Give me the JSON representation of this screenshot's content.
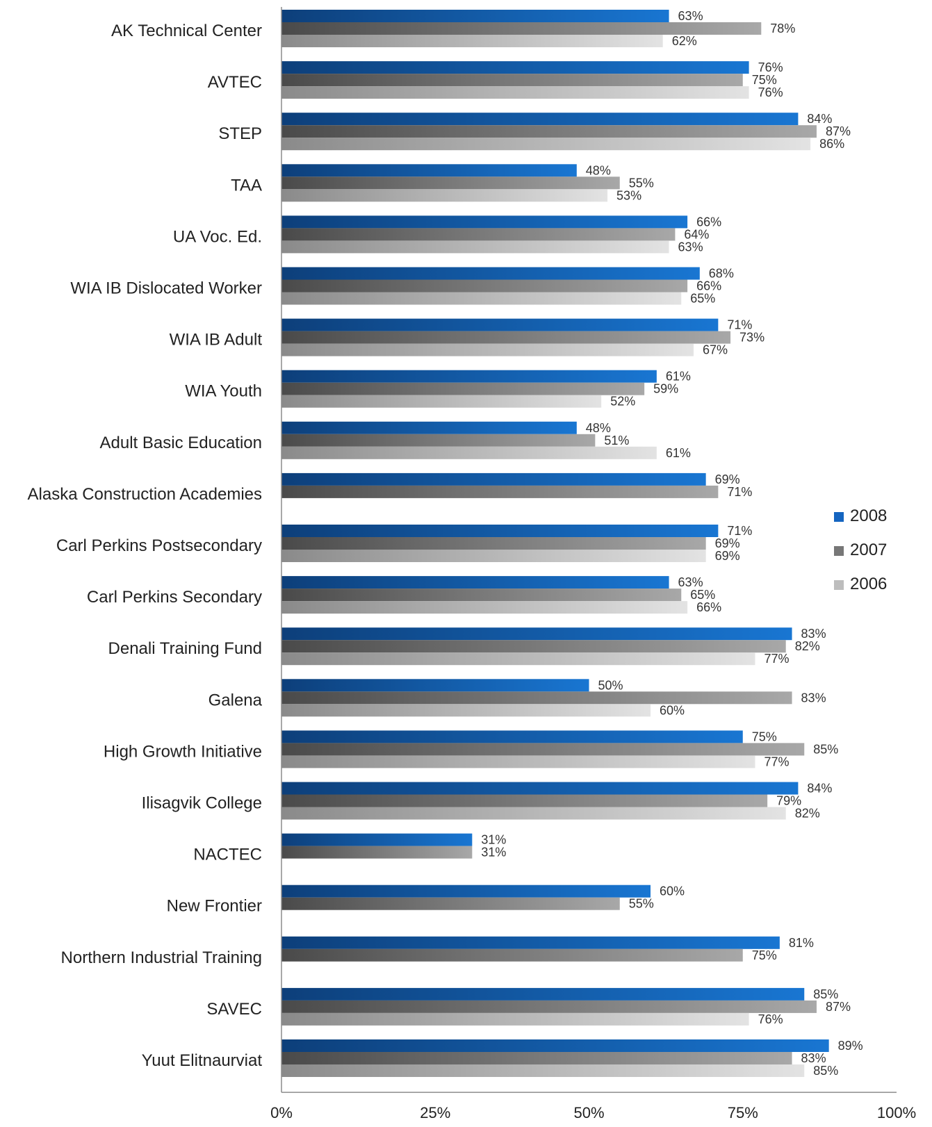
{
  "chart_data": {
    "type": "bar",
    "orientation": "horizontal",
    "title": "",
    "xlabel": "",
    "ylabel": "",
    "xlim": [
      0,
      100
    ],
    "x_ticks": [
      "0%",
      "25%",
      "50%",
      "75%",
      "100%"
    ],
    "grid": false,
    "legend_position": "right",
    "value_suffix": "%",
    "categories": [
      "AK Technical Center",
      "AVTEC",
      "STEP",
      "TAA",
      "UA Voc. Ed.",
      "WIA IB Dislocated Worker",
      "WIA IB Adult",
      "WIA Youth",
      "Adult Basic Education",
      "Alaska Construction Academies",
      "Carl Perkins Postsecondary",
      "Carl Perkins Secondary",
      "Denali Training Fund",
      "Galena",
      "High Growth Initiative",
      "Ilisagvik College",
      "NACTEC",
      "New Frontier",
      "Northern Industrial Training",
      "SAVEC",
      "Yuut Elitnaurviat"
    ],
    "series": [
      {
        "name": "2008",
        "color": "#1565C0",
        "values": [
          63,
          76,
          84,
          48,
          66,
          68,
          71,
          61,
          48,
          69,
          71,
          63,
          83,
          50,
          75,
          84,
          31,
          60,
          81,
          85,
          89
        ]
      },
      {
        "name": "2007",
        "color": "#777777",
        "values": [
          78,
          75,
          87,
          55,
          64,
          66,
          73,
          59,
          51,
          71,
          69,
          65,
          82,
          83,
          85,
          79,
          31,
          55,
          75,
          87,
          83
        ]
      },
      {
        "name": "2006",
        "color": "#BDBDBD",
        "values": [
          62,
          76,
          86,
          53,
          63,
          65,
          67,
          52,
          61,
          null,
          69,
          66,
          77,
          60,
          77,
          82,
          null,
          null,
          null,
          76,
          85
        ]
      }
    ]
  }
}
